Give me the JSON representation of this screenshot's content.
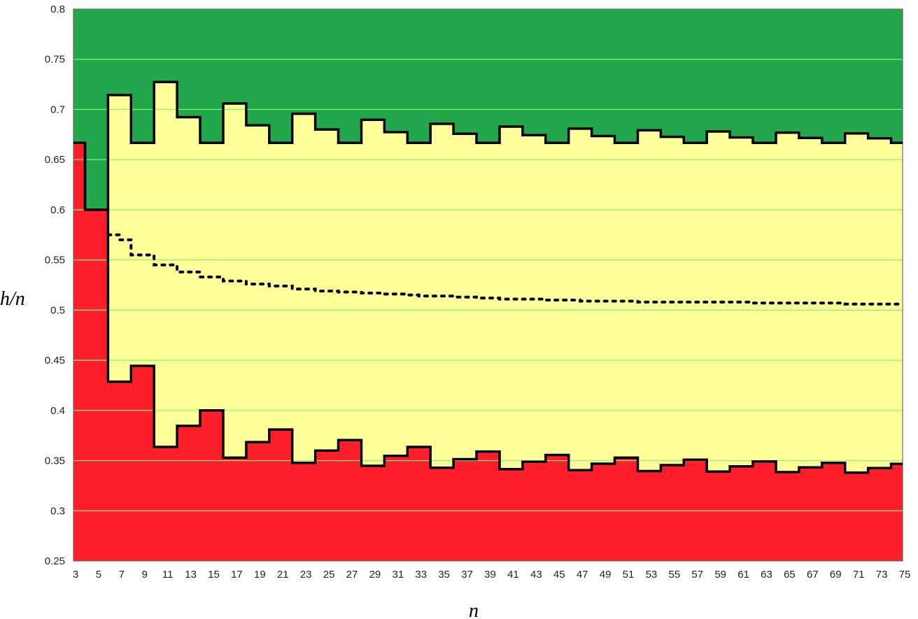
{
  "chart_data": {
    "type": "area",
    "title": "",
    "xlabel": "n",
    "ylabel": "h/n",
    "xlim": [
      3,
      75
    ],
    "ylim": [
      0.25,
      0.8
    ],
    "y_ticks": [
      0.25,
      0.3,
      0.35,
      0.4,
      0.45,
      0.5,
      0.55,
      0.6,
      0.65,
      0.7,
      0.75,
      0.8
    ],
    "y_tick_labels": [
      "0.25",
      "0.3",
      "0.35",
      "0.4",
      "0.45",
      "0.5",
      "0.55",
      "0.6",
      "0.65",
      "0.7",
      "0.75",
      "0.8"
    ],
    "x_ticks": [
      3,
      5,
      7,
      9,
      11,
      13,
      15,
      17,
      19,
      21,
      23,
      25,
      27,
      29,
      31,
      33,
      35,
      37,
      39,
      41,
      43,
      45,
      47,
      49,
      51,
      53,
      55,
      57,
      59,
      61,
      63,
      65,
      67,
      69,
      71,
      73,
      75
    ],
    "x_tick_labels": [
      "3",
      "5",
      "7",
      "9",
      "11",
      "13",
      "15",
      "17",
      "19",
      "21",
      "23",
      "25",
      "27",
      "29",
      "31",
      "33",
      "35",
      "37",
      "39",
      "41",
      "43",
      "45",
      "47",
      "49",
      "51",
      "53",
      "55",
      "57",
      "59",
      "61",
      "63",
      "65",
      "67",
      "69",
      "71",
      "73",
      "75"
    ],
    "grid": true,
    "colors": {
      "upper_region": "#22a84a",
      "middle_region": "#ffff99",
      "lower_region": "#ff1f2b",
      "grid": "#7cfc7c",
      "boundary": "#000000"
    },
    "series": [
      {
        "kind": "upper-boundary",
        "points": [
          [
            3,
            0.6667
          ],
          [
            4,
            0.6
          ],
          [
            5,
            0.6
          ],
          [
            6,
            0.7143
          ],
          [
            7,
            0.7143
          ],
          [
            8,
            0.6667
          ],
          [
            9,
            0.6667
          ],
          [
            10,
            0.7273
          ],
          [
            11,
            0.7273
          ],
          [
            12,
            0.6923
          ],
          [
            13,
            0.6923
          ],
          [
            14,
            0.6667
          ],
          [
            15,
            0.6667
          ],
          [
            16,
            0.7059
          ],
          [
            17,
            0.7059
          ],
          [
            18,
            0.6842
          ],
          [
            19,
            0.6842
          ],
          [
            20,
            0.6667
          ],
          [
            21,
            0.6667
          ],
          [
            22,
            0.6957
          ],
          [
            23,
            0.6957
          ],
          [
            24,
            0.68
          ],
          [
            25,
            0.68
          ],
          [
            26,
            0.6667
          ],
          [
            27,
            0.6667
          ],
          [
            28,
            0.6897
          ],
          [
            29,
            0.6897
          ],
          [
            30,
            0.6774
          ],
          [
            31,
            0.6774
          ],
          [
            32,
            0.6667
          ],
          [
            33,
            0.6667
          ],
          [
            34,
            0.6857
          ],
          [
            35,
            0.6857
          ],
          [
            36,
            0.6757
          ],
          [
            37,
            0.6757
          ],
          [
            38,
            0.6667
          ],
          [
            39,
            0.6667
          ],
          [
            40,
            0.6829
          ],
          [
            41,
            0.6829
          ],
          [
            42,
            0.6744
          ],
          [
            43,
            0.6744
          ],
          [
            44,
            0.6667
          ],
          [
            45,
            0.6667
          ],
          [
            46,
            0.6809
          ],
          [
            47,
            0.6809
          ],
          [
            48,
            0.6735
          ],
          [
            49,
            0.6735
          ],
          [
            50,
            0.6667
          ],
          [
            51,
            0.6667
          ],
          [
            52,
            0.6792
          ],
          [
            53,
            0.6792
          ],
          [
            54,
            0.6727
          ],
          [
            55,
            0.6727
          ],
          [
            56,
            0.6667
          ],
          [
            57,
            0.6667
          ],
          [
            58,
            0.678
          ],
          [
            59,
            0.678
          ],
          [
            60,
            0.6721
          ],
          [
            61,
            0.6721
          ],
          [
            62,
            0.6667
          ],
          [
            63,
            0.6667
          ],
          [
            64,
            0.6769
          ],
          [
            65,
            0.6769
          ],
          [
            66,
            0.6716
          ],
          [
            67,
            0.6716
          ],
          [
            68,
            0.6667
          ],
          [
            69,
            0.6667
          ],
          [
            70,
            0.6761
          ],
          [
            71,
            0.6761
          ],
          [
            72,
            0.6712
          ],
          [
            73,
            0.6712
          ],
          [
            74,
            0.6667
          ],
          [
            75,
            0.6667
          ]
        ]
      },
      {
        "kind": "lower-boundary",
        "points": [
          [
            3,
            0.6667
          ],
          [
            4,
            0.6
          ],
          [
            5,
            0.6
          ],
          [
            6,
            0.4286
          ],
          [
            7,
            0.4286
          ],
          [
            8,
            0.4444
          ],
          [
            9,
            0.4444
          ],
          [
            10,
            0.3636
          ],
          [
            11,
            0.3636
          ],
          [
            12,
            0.3846
          ],
          [
            13,
            0.3846
          ],
          [
            14,
            0.4
          ],
          [
            15,
            0.4
          ],
          [
            16,
            0.3529
          ],
          [
            17,
            0.3529
          ],
          [
            18,
            0.3684
          ],
          [
            19,
            0.3684
          ],
          [
            20,
            0.381
          ],
          [
            21,
            0.381
          ],
          [
            22,
            0.3478
          ],
          [
            23,
            0.3478
          ],
          [
            24,
            0.36
          ],
          [
            25,
            0.36
          ],
          [
            26,
            0.3704
          ],
          [
            27,
            0.3704
          ],
          [
            28,
            0.3448
          ],
          [
            29,
            0.3448
          ],
          [
            30,
            0.3548
          ],
          [
            31,
            0.3548
          ],
          [
            32,
            0.3636
          ],
          [
            33,
            0.3636
          ],
          [
            34,
            0.3429
          ],
          [
            35,
            0.3429
          ],
          [
            36,
            0.3514
          ],
          [
            37,
            0.3514
          ],
          [
            38,
            0.359
          ],
          [
            39,
            0.359
          ],
          [
            40,
            0.3415
          ],
          [
            41,
            0.3415
          ],
          [
            42,
            0.3488
          ],
          [
            43,
            0.3488
          ],
          [
            44,
            0.3556
          ],
          [
            45,
            0.3556
          ],
          [
            46,
            0.3404
          ],
          [
            47,
            0.3404
          ],
          [
            48,
            0.3469
          ],
          [
            49,
            0.3469
          ],
          [
            50,
            0.3529
          ],
          [
            51,
            0.3529
          ],
          [
            52,
            0.3396
          ],
          [
            53,
            0.3396
          ],
          [
            54,
            0.3455
          ],
          [
            55,
            0.3455
          ],
          [
            56,
            0.3509
          ],
          [
            57,
            0.3509
          ],
          [
            58,
            0.339
          ],
          [
            59,
            0.339
          ],
          [
            60,
            0.3443
          ],
          [
            61,
            0.3443
          ],
          [
            62,
            0.3492
          ],
          [
            63,
            0.3492
          ],
          [
            64,
            0.3385
          ],
          [
            65,
            0.3385
          ],
          [
            66,
            0.3433
          ],
          [
            67,
            0.3433
          ],
          [
            68,
            0.3478
          ],
          [
            69,
            0.3478
          ],
          [
            70,
            0.338
          ],
          [
            71,
            0.338
          ],
          [
            72,
            0.3425
          ],
          [
            73,
            0.3425
          ],
          [
            74,
            0.3467
          ],
          [
            75,
            0.3467
          ]
        ]
      },
      {
        "kind": "dotted-median",
        "points": [
          [
            6,
            0.575
          ],
          [
            7,
            0.57
          ],
          [
            8,
            0.555
          ],
          [
            9,
            0.555
          ],
          [
            10,
            0.545
          ],
          [
            11,
            0.545
          ],
          [
            12,
            0.538
          ],
          [
            13,
            0.538
          ],
          [
            14,
            0.533
          ],
          [
            15,
            0.533
          ],
          [
            16,
            0.529
          ],
          [
            17,
            0.529
          ],
          [
            18,
            0.526
          ],
          [
            19,
            0.526
          ],
          [
            20,
            0.524
          ],
          [
            21,
            0.524
          ],
          [
            22,
            0.521
          ],
          [
            23,
            0.521
          ],
          [
            24,
            0.519
          ],
          [
            25,
            0.519
          ],
          [
            26,
            0.518
          ],
          [
            27,
            0.518
          ],
          [
            28,
            0.517
          ],
          [
            29,
            0.517
          ],
          [
            30,
            0.516
          ],
          [
            31,
            0.516
          ],
          [
            32,
            0.515
          ],
          [
            33,
            0.514
          ],
          [
            34,
            0.514
          ],
          [
            35,
            0.514
          ],
          [
            36,
            0.513
          ],
          [
            37,
            0.513
          ],
          [
            38,
            0.512
          ],
          [
            39,
            0.512
          ],
          [
            40,
            0.511
          ],
          [
            41,
            0.511
          ],
          [
            42,
            0.511
          ],
          [
            43,
            0.511
          ],
          [
            44,
            0.51
          ],
          [
            45,
            0.51
          ],
          [
            46,
            0.51
          ],
          [
            47,
            0.509
          ],
          [
            48,
            0.509
          ],
          [
            49,
            0.509
          ],
          [
            50,
            0.509
          ],
          [
            51,
            0.509
          ],
          [
            52,
            0.508
          ],
          [
            53,
            0.508
          ],
          [
            54,
            0.508
          ],
          [
            55,
            0.508
          ],
          [
            56,
            0.508
          ],
          [
            57,
            0.508
          ],
          [
            58,
            0.508
          ],
          [
            59,
            0.508
          ],
          [
            60,
            0.508
          ],
          [
            61,
            0.508
          ],
          [
            62,
            0.507
          ],
          [
            63,
            0.507
          ],
          [
            64,
            0.507
          ],
          [
            65,
            0.507
          ],
          [
            66,
            0.507
          ],
          [
            67,
            0.507
          ],
          [
            68,
            0.507
          ],
          [
            69,
            0.507
          ],
          [
            70,
            0.506
          ],
          [
            71,
            0.506
          ],
          [
            72,
            0.506
          ],
          [
            73,
            0.506
          ],
          [
            74,
            0.506
          ],
          [
            75,
            0.506
          ]
        ]
      }
    ]
  }
}
